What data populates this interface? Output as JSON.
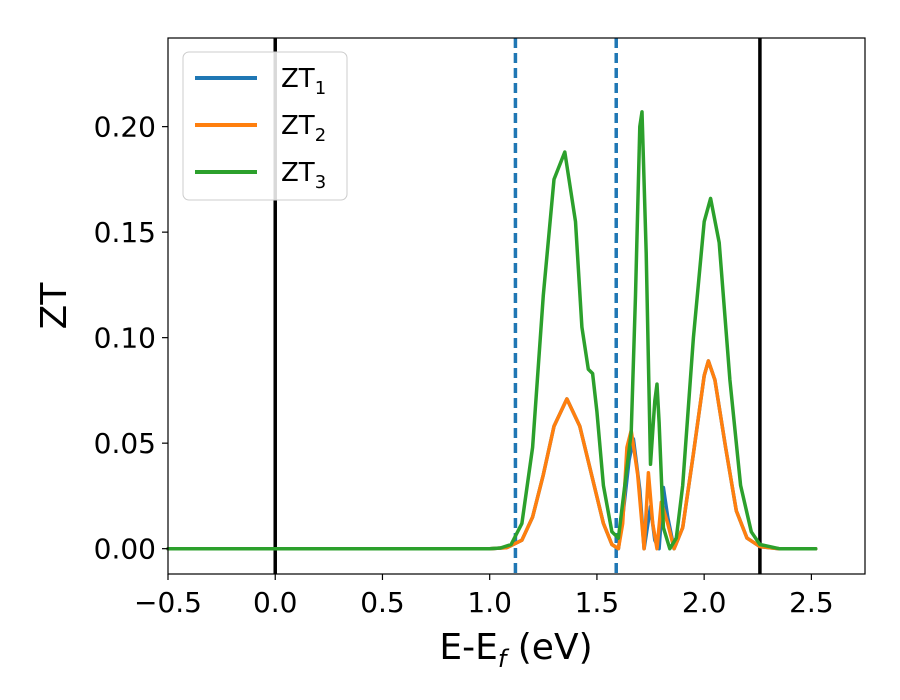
{
  "chart_data": {
    "type": "line",
    "title": "",
    "xlabel": "E-E",
    "xlabel_sub": "f",
    "xlabel_unit": " (eV)",
    "ylabel": "ZT",
    "xlim": [
      -0.5,
      2.75
    ],
    "ylim": [
      -0.012,
      0.242
    ],
    "grid": false,
    "legend_position": "top-left",
    "xticks": [
      -0.5,
      0.0,
      0.5,
      1.0,
      1.5,
      2.0,
      2.5
    ],
    "xtick_labels": [
      "−0.5",
      "0.0",
      "0.5",
      "1.0",
      "1.5",
      "2.0",
      "2.5"
    ],
    "yticks": [
      0.0,
      0.05,
      0.1,
      0.15,
      0.2
    ],
    "ytick_labels": [
      "0.00",
      "0.05",
      "0.10",
      "0.15",
      "0.20"
    ],
    "vertical_lines": [
      {
        "x": 0.0,
        "style": "solid",
        "color": "#000000"
      },
      {
        "x": 2.26,
        "style": "solid",
        "color": "#000000"
      },
      {
        "x": 1.12,
        "style": "dashed",
        "color": "#1f77b4"
      },
      {
        "x": 1.59,
        "style": "dashed",
        "color": "#1f77b4"
      }
    ],
    "series": [
      {
        "name": "ZT",
        "name_sub": "1",
        "color": "#1f77b4",
        "x": [
          -0.5,
          1.0,
          1.08,
          1.15,
          1.2,
          1.25,
          1.3,
          1.36,
          1.42,
          1.48,
          1.53,
          1.57,
          1.6,
          1.62,
          1.65,
          1.67,
          1.7,
          1.72,
          1.75,
          1.77,
          1.79,
          1.81,
          1.83,
          1.86,
          1.9,
          1.95,
          2.0,
          2.02,
          2.05,
          2.1,
          2.15,
          2.2,
          2.26,
          2.35,
          2.52
        ],
        "y": [
          0,
          0,
          0.0005,
          0.004,
          0.015,
          0.035,
          0.058,
          0.071,
          0.058,
          0.033,
          0.012,
          0.002,
          0.0,
          0.015,
          0.042,
          0.052,
          0.028,
          0.0,
          0.02,
          0.004,
          0.0,
          0.029,
          0.015,
          0.0,
          0.01,
          0.045,
          0.082,
          0.089,
          0.08,
          0.048,
          0.018,
          0.005,
          0.001,
          0.0,
          0.0
        ]
      },
      {
        "name": "ZT",
        "name_sub": "2",
        "color": "#ff7f0e",
        "x": [
          -0.5,
          1.0,
          1.08,
          1.15,
          1.2,
          1.25,
          1.3,
          1.36,
          1.42,
          1.48,
          1.53,
          1.57,
          1.6,
          1.62,
          1.64,
          1.66,
          1.69,
          1.72,
          1.74,
          1.76,
          1.78,
          1.8,
          1.83,
          1.86,
          1.9,
          1.95,
          2.0,
          2.02,
          2.05,
          2.1,
          2.15,
          2.2,
          2.26,
          2.35,
          2.52
        ],
        "y": [
          0,
          0,
          0.0005,
          0.004,
          0.015,
          0.035,
          0.058,
          0.071,
          0.058,
          0.033,
          0.012,
          0.002,
          0.0,
          0.012,
          0.048,
          0.056,
          0.035,
          0.0,
          0.036,
          0.012,
          0.0,
          0.022,
          0.012,
          0.0,
          0.01,
          0.045,
          0.082,
          0.089,
          0.08,
          0.048,
          0.018,
          0.005,
          0.001,
          0.0,
          0.0
        ]
      },
      {
        "name": "ZT",
        "name_sub": "3",
        "color": "#2ca02c",
        "x": [
          -0.5,
          1.0,
          1.05,
          1.1,
          1.15,
          1.2,
          1.25,
          1.3,
          1.35,
          1.4,
          1.43,
          1.46,
          1.48,
          1.5,
          1.53,
          1.57,
          1.6,
          1.63,
          1.66,
          1.68,
          1.7,
          1.71,
          1.73,
          1.75,
          1.77,
          1.78,
          1.79,
          1.81,
          1.84,
          1.87,
          1.9,
          1.95,
          2.0,
          2.03,
          2.07,
          2.12,
          2.17,
          2.22,
          2.26,
          2.35,
          2.52
        ],
        "y": [
          0,
          0,
          0.0003,
          0.002,
          0.012,
          0.048,
          0.12,
          0.175,
          0.188,
          0.155,
          0.105,
          0.085,
          0.083,
          0.065,
          0.03,
          0.008,
          0.005,
          0.03,
          0.055,
          0.12,
          0.2,
          0.207,
          0.14,
          0.04,
          0.07,
          0.078,
          0.06,
          0.01,
          0.0,
          0.005,
          0.03,
          0.1,
          0.155,
          0.166,
          0.145,
          0.08,
          0.03,
          0.008,
          0.002,
          0.0,
          0.0
        ]
      }
    ]
  }
}
